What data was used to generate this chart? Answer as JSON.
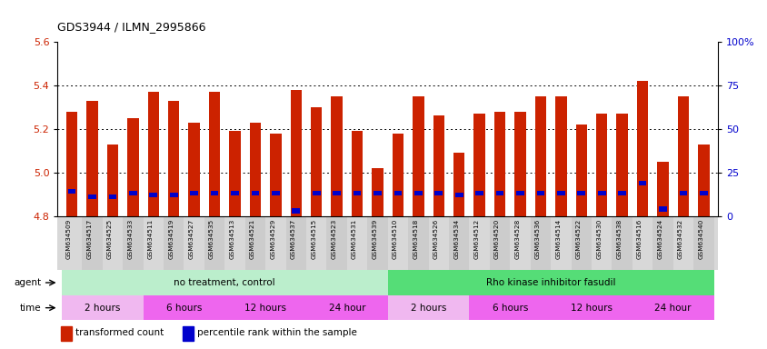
{
  "title": "GDS3944 / ILMN_2995866",
  "samples": [
    "GSM634509",
    "GSM634517",
    "GSM634525",
    "GSM634533",
    "GSM634511",
    "GSM634519",
    "GSM634527",
    "GSM634535",
    "GSM634513",
    "GSM634521",
    "GSM634529",
    "GSM634537",
    "GSM634515",
    "GSM634523",
    "GSM634531",
    "GSM634539",
    "GSM634510",
    "GSM634518",
    "GSM634526",
    "GSM634534",
    "GSM634512",
    "GSM634520",
    "GSM634528",
    "GSM634536",
    "GSM634514",
    "GSM634522",
    "GSM634530",
    "GSM634538",
    "GSM634516",
    "GSM634524",
    "GSM634532",
    "GSM634540"
  ],
  "transformed_count": [
    5.28,
    5.33,
    5.13,
    5.25,
    5.37,
    5.33,
    5.23,
    5.37,
    5.19,
    5.23,
    5.18,
    5.38,
    5.3,
    5.35,
    5.19,
    5.02,
    5.18,
    5.35,
    5.26,
    5.09,
    5.27,
    5.28,
    5.28,
    5.35,
    5.35,
    5.22,
    5.27,
    5.27,
    5.42,
    5.05,
    5.35,
    5.13
  ],
  "percentile_rank": [
    14,
    11,
    11,
    13,
    12,
    12,
    13,
    13,
    13,
    13,
    13,
    3,
    13,
    13,
    13,
    13,
    13,
    13,
    13,
    12,
    13,
    13,
    13,
    13,
    13,
    13,
    13,
    13,
    19,
    4,
    13,
    13
  ],
  "ymin": 4.8,
  "ymax": 5.6,
  "yticks_left": [
    4.8,
    5.0,
    5.2,
    5.4,
    5.6
  ],
  "yticks_right": [
    0,
    25,
    50,
    75,
    100
  ],
  "ytick_right_labels": [
    "0",
    "25",
    "50",
    "75",
    "100%"
  ],
  "bar_color": "#cc2200",
  "blue_color": "#0000cc",
  "chart_bg": "#ffffff",
  "xticklabel_bg": "#d8d8d8",
  "agent_groups": [
    {
      "label": "no treatment, control",
      "start": 0,
      "end": 16,
      "color": "#bbeecc"
    },
    {
      "label": "Rho kinase inhibitor fasudil",
      "start": 16,
      "end": 32,
      "color": "#55dd77"
    }
  ],
  "time_groups": [
    {
      "label": "2 hours",
      "start": 0,
      "end": 4,
      "color": "#f0b8f0"
    },
    {
      "label": "6 hours",
      "start": 4,
      "end": 8,
      "color": "#ee66ee"
    },
    {
      "label": "12 hours",
      "start": 8,
      "end": 12,
      "color": "#ee66ee"
    },
    {
      "label": "24 hour",
      "start": 12,
      "end": 16,
      "color": "#ee66ee"
    },
    {
      "label": "2 hours",
      "start": 16,
      "end": 20,
      "color": "#f0b8f0"
    },
    {
      "label": "6 hours",
      "start": 20,
      "end": 24,
      "color": "#ee66ee"
    },
    {
      "label": "12 hours",
      "start": 24,
      "end": 28,
      "color": "#ee66ee"
    },
    {
      "label": "24 hour",
      "start": 28,
      "end": 32,
      "color": "#ee66ee"
    }
  ],
  "legend_items": [
    {
      "label": "transformed count",
      "color": "#cc2200"
    },
    {
      "label": "percentile rank within the sample",
      "color": "#0000cc"
    }
  ],
  "grid_lines": [
    5.0,
    5.2,
    5.4
  ]
}
